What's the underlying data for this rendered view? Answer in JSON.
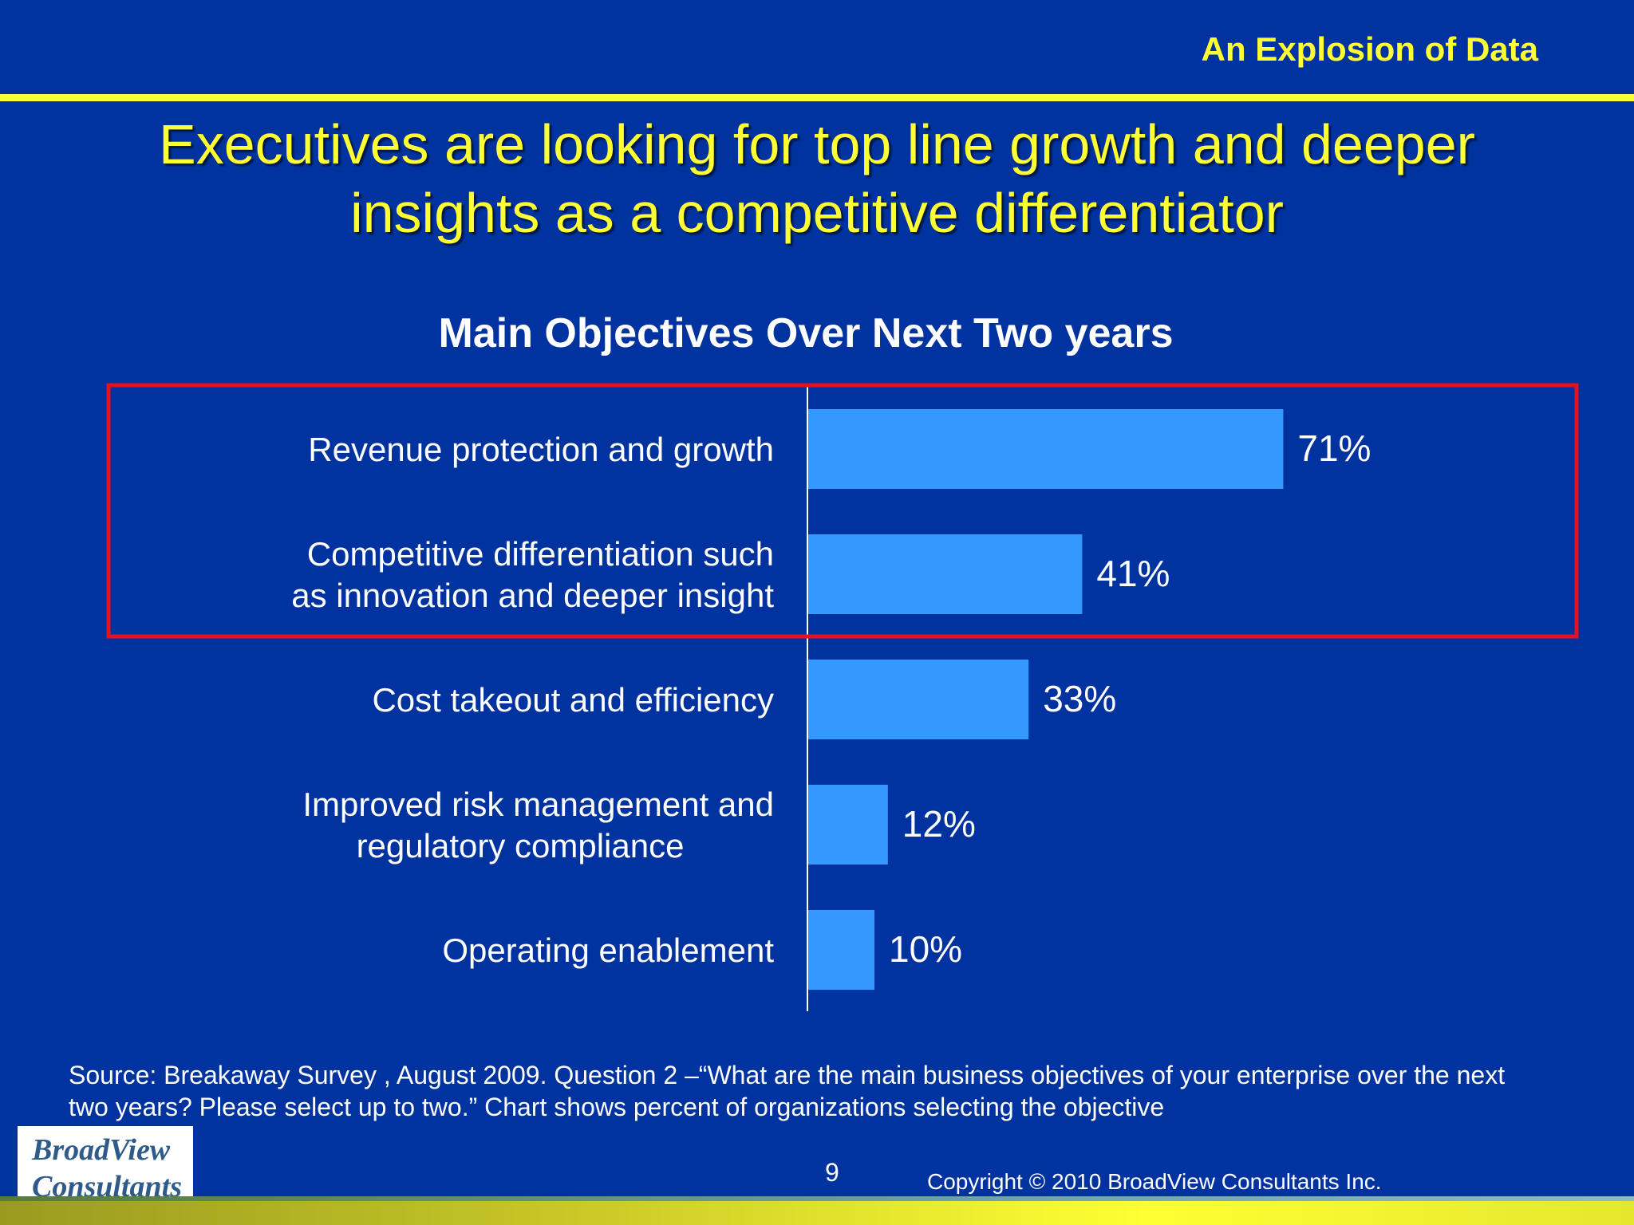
{
  "header": {
    "section_title": "An Explosion of Data"
  },
  "headline": {
    "line1": "Executives are looking for top line growth and deeper",
    "line2": "insights as a competitive differentiator"
  },
  "chart_data": {
    "type": "bar",
    "orientation": "horizontal",
    "title": "Main Objectives Over Next Two years",
    "categories": [
      [
        "Revenue protection and growth"
      ],
      [
        "Competitive differentiation such",
        "as innovation and deeper insight"
      ],
      [
        "Cost takeout and efficiency"
      ],
      [
        "Improved risk management and",
        "regulatory compliance"
      ],
      [
        "Operating enablement"
      ]
    ],
    "values": [
      71,
      41,
      33,
      12,
      10
    ],
    "data_labels": [
      "71%",
      "41%",
      "33%",
      "12%",
      "10%"
    ],
    "unit": "%",
    "xlim": [
      0,
      100
    ],
    "highlighted_categories": [
      0,
      1
    ],
    "bar_color": "#3399ff",
    "highlight_color": "#e8101e",
    "grid": false,
    "legend": "none"
  },
  "footer": {
    "source_line1": "Source: Breakaway Survey , August 2009. Question 2 –“What are the main business objectives of your enterprise over the next",
    "source_line2": "two years? Please select up to two.” Chart shows percent of organizations selecting the objective",
    "logo_line1": "BroadView",
    "logo_line2": "Consultants",
    "page_number": "9",
    "copyright": "Copyright © 2010 BroadView Consultants Inc."
  },
  "colors": {
    "background": "#0033a0",
    "accent_yellow": "#ffff33",
    "text": "#ffffff"
  }
}
